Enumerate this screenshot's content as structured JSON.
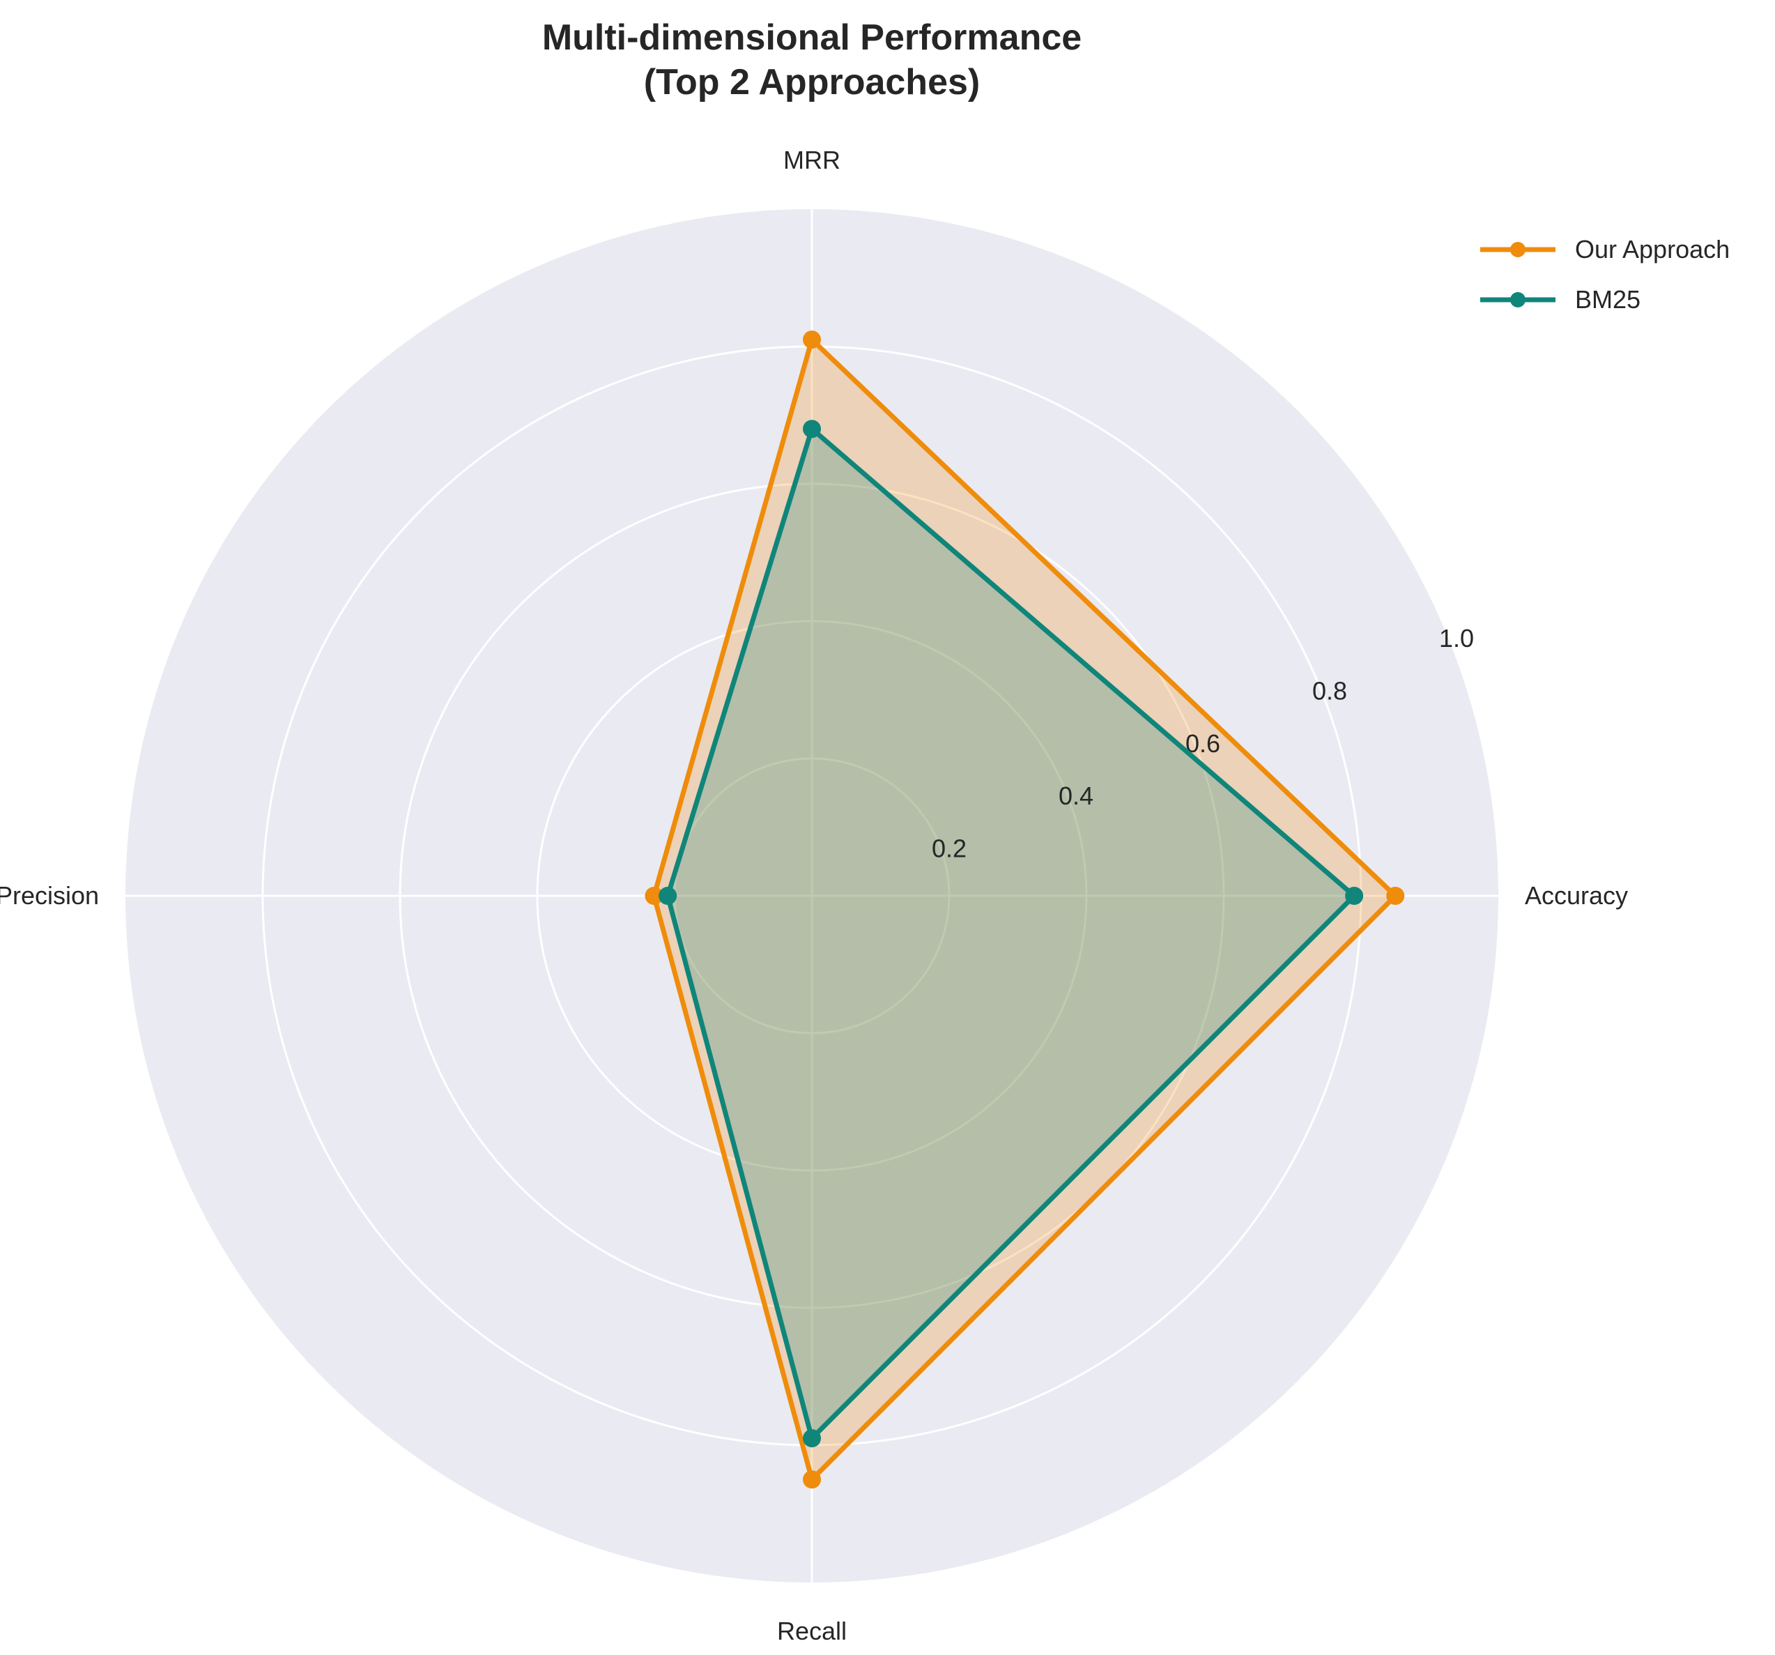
{
  "chart_data": {
    "type": "radar",
    "title_line1": "Multi-dimensional Performance",
    "title_line2": "(Top 2 Approaches)",
    "axes": [
      "Accuracy",
      "MRR",
      "Precision",
      "Recall"
    ],
    "radial_ticks": [
      "0.2",
      "0.4",
      "0.6",
      "0.8",
      "1.0"
    ],
    "radial_tick_values": [
      0.2,
      0.4,
      0.6,
      0.8,
      1.0
    ],
    "rlim": [
      0,
      1.0
    ],
    "grid": true,
    "legend_position": "top-right",
    "series": [
      {
        "name": "Our Approach",
        "color": "#ef8c0b",
        "values": [
          0.85,
          0.81,
          0.23,
          0.85
        ]
      },
      {
        "name": "BM25",
        "color": "#10857a",
        "values": [
          0.79,
          0.68,
          0.21,
          0.79
        ]
      }
    ]
  }
}
